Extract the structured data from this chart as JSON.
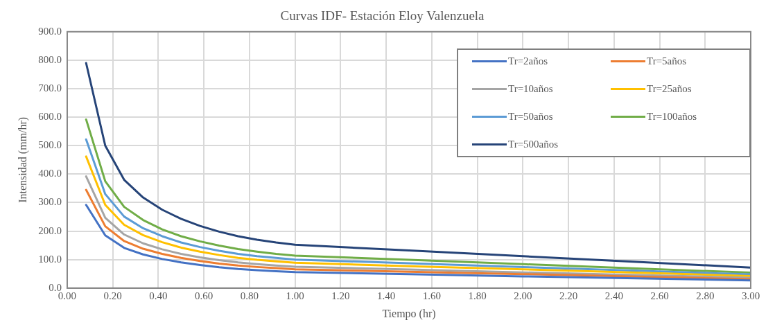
{
  "chart_data": {
    "type": "line",
    "title": "Curvas IDF- Estación Eloy Valenzuela",
    "xlabel": "Tiempo (hr)",
    "ylabel": "Intensidad (mm/hr)",
    "x": [
      0.083,
      0.167,
      0.25,
      0.333,
      0.417,
      0.5,
      0.583,
      0.667,
      0.75,
      0.833,
      0.917,
      1.0,
      1.5,
      2.0,
      2.5,
      3.0
    ],
    "series": [
      {
        "name": "Tr=2años",
        "color": "#4472c4",
        "values": [
          292,
          185,
          141,
          118,
          102,
          90,
          81,
          73,
          67,
          63,
          59,
          56,
          49,
          41,
          34,
          27
        ]
      },
      {
        "name": "Tr=5años",
        "color": "#ed7d31",
        "values": [
          345,
          217,
          165,
          138,
          120,
          106,
          95,
          86,
          79,
          74,
          70,
          66,
          57,
          49,
          40,
          31
        ]
      },
      {
        "name": "Tr=10años",
        "color": "#a5a5a5",
        "values": [
          392,
          247,
          188,
          157,
          136,
          120,
          108,
          98,
          90,
          84,
          79,
          75,
          65,
          55,
          46,
          36
        ]
      },
      {
        "name": "Tr=25años",
        "color": "#ffc000",
        "values": [
          462,
          292,
          222,
          186,
          161,
          142,
          128,
          116,
          106,
          99,
          94,
          89,
          77,
          66,
          54,
          42
        ]
      },
      {
        "name": "Tr=50años",
        "color": "#5b9bd5",
        "values": [
          522,
          330,
          251,
          210,
          182,
          160,
          144,
          131,
          120,
          112,
          106,
          100,
          87,
          74,
          61,
          48
        ]
      },
      {
        "name": "Tr=100años",
        "color": "#70ad47",
        "values": [
          592,
          375,
          285,
          239,
          206,
          182,
          164,
          149,
          137,
          128,
          120,
          114,
          99,
          84,
          69,
          54
        ]
      },
      {
        "name": "Tr=500años",
        "color": "#264478",
        "values": [
          790,
          500,
          380,
          318,
          275,
          243,
          218,
          198,
          182,
          170,
          160,
          152,
          132,
          112,
          92,
          72
        ]
      }
    ],
    "xlim": [
      0,
      3
    ],
    "xticks": [
      {
        "value": 0,
        "label": "0.00"
      },
      {
        "value": 0.2,
        "label": "0.20"
      },
      {
        "value": 0.4,
        "label": "0.40"
      },
      {
        "value": 0.6,
        "label": "0.60"
      },
      {
        "value": 0.8,
        "label": "0.80"
      },
      {
        "value": 1,
        "label": "1.00"
      },
      {
        "value": 1.2,
        "label": "1.20"
      },
      {
        "value": 1.4,
        "label": "1.40"
      },
      {
        "value": 1.6,
        "label": "1.60"
      },
      {
        "value": 1.8,
        "label": "1.80"
      },
      {
        "value": 2,
        "label": "2.00"
      },
      {
        "value": 2.2,
        "label": "2.20"
      },
      {
        "value": 2.4,
        "label": "2.40"
      },
      {
        "value": 2.6,
        "label": "2.60"
      },
      {
        "value": 2.8,
        "label": "2.80"
      },
      {
        "value": 3,
        "label": "3.00"
      }
    ],
    "ylim": [
      0,
      900
    ],
    "yticks": [
      {
        "value": 0,
        "label": "0.0"
      },
      {
        "value": 100,
        "label": "100.0"
      },
      {
        "value": 200,
        "label": "200.0"
      },
      {
        "value": 300,
        "label": "300.0"
      },
      {
        "value": 400,
        "label": "400.0"
      },
      {
        "value": 500,
        "label": "500.0"
      },
      {
        "value": 600,
        "label": "600.0"
      },
      {
        "value": 700,
        "label": "700.0"
      },
      {
        "value": 800,
        "label": "800.0"
      },
      {
        "value": 900,
        "label": "900.0"
      }
    ],
    "grid": true,
    "legend": "top right",
    "marker": "none",
    "line_style": "solid"
  }
}
